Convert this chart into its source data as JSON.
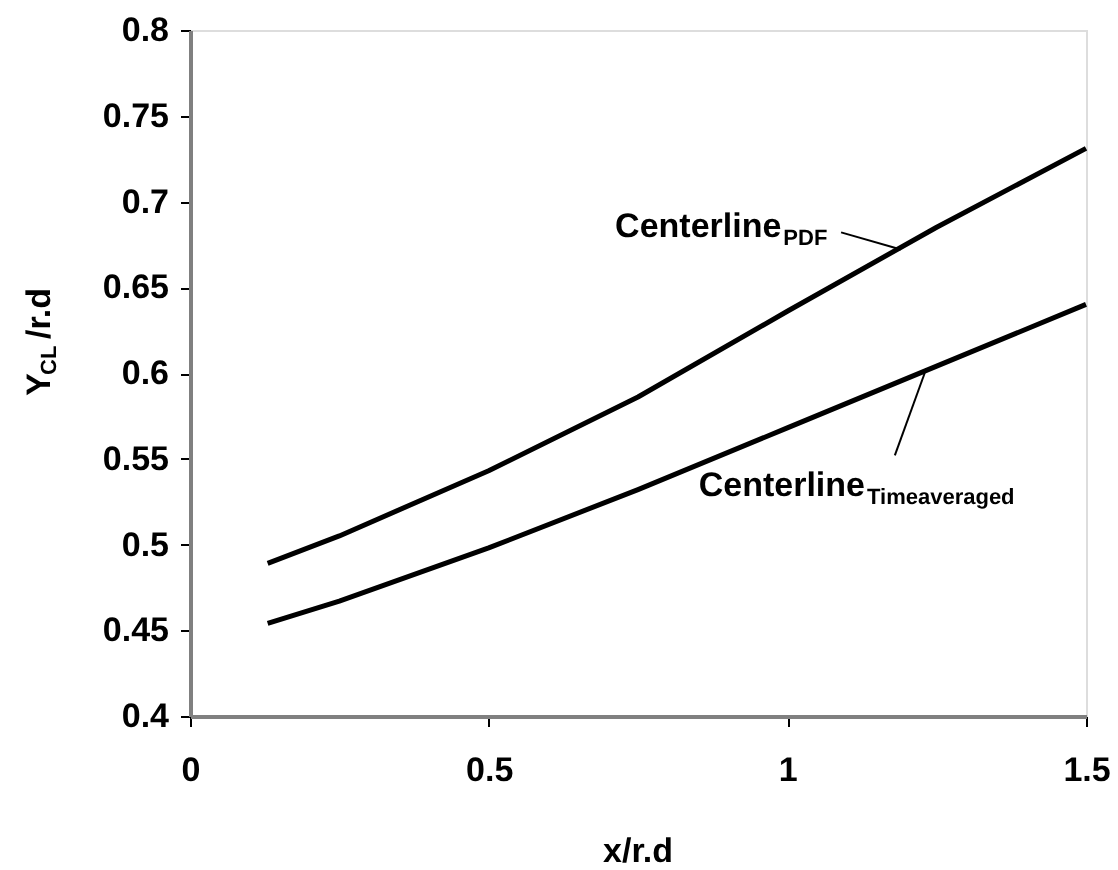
{
  "chart_data": {
    "type": "line",
    "xlabel": "x/r.d",
    "ylabel": "Y$_{CL}$/r.d",
    "xlim": [
      0,
      1.5
    ],
    "xticks": [
      0,
      0.5,
      1,
      1.5
    ],
    "ylim": [
      0.4,
      0.8
    ],
    "yticks": [
      0.4,
      0.45,
      0.5,
      0.55,
      0.6,
      0.65,
      0.7,
      0.75,
      0.8
    ],
    "x": [
      0.13,
      0.25,
      0.5,
      0.75,
      1.0,
      1.25,
      1.5
    ],
    "series": [
      {
        "color": "#000000",
        "values": [
          0.489,
          0.505,
          0.543,
          0.586,
          0.636,
          0.685,
          0.731
        ]
      },
      {
        "color": "#000000",
        "values": [
          0.454,
          0.467,
          0.498,
          0.532,
          0.568,
          0.604,
          0.64
        ]
      }
    ],
    "annotations": [
      {
        "text": "Centerline$_{PDF}$",
        "x": 1.19,
        "y": 0.672
      },
      {
        "text": "Centerline$_{Timeaveraged}$",
        "x": 1.23,
        "y": 0.6
      }
    ],
    "grid": false,
    "marker": "none",
    "line_style": "solid"
  }
}
